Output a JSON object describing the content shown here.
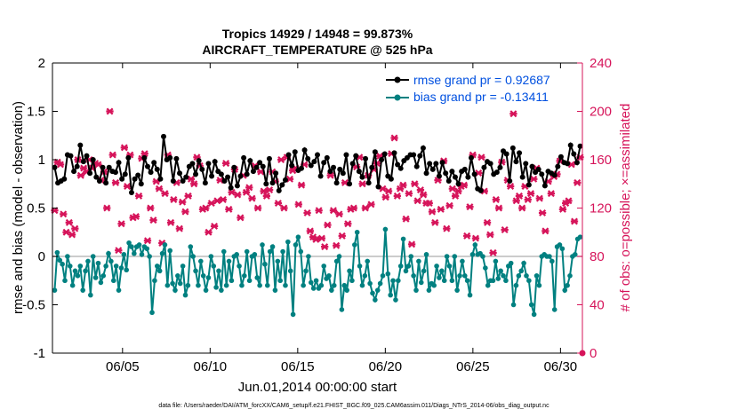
{
  "chart_data": {
    "type": "line",
    "title_line1": "Tropics 14929 / 14948 = 99.873%",
    "title_line2": "AIRCRAFT_TEMPERATURE @ 525 hPa",
    "xlabel": "Jun.01,2014 00:00:00 start",
    "ylabel_left": "rmse and bias (model - observation)",
    "ylabel_right": "# of obs: o=possible; ×=assimilated",
    "footer": "data file: /Users/raeder/DAI/ATM_forcXX/CAM6_setup/f.e21.FHIST_BGC.f09_025.CAM6assim.011/Diags_NTrS_2014-06/obs_diag_output.nc",
    "xlim": [
      1,
      31.25
    ],
    "ylim_left": [
      -1,
      2
    ],
    "ylim_right": [
      0,
      240
    ],
    "x_ticks": [
      5,
      10,
      15,
      20,
      25,
      30
    ],
    "x_tick_labels": [
      "06/05",
      "06/10",
      "06/15",
      "06/20",
      "06/25",
      "06/30"
    ],
    "y_left_ticks": [
      -1,
      -0.5,
      0,
      0.5,
      1,
      1.5,
      2
    ],
    "y_left_tick_labels": [
      "-1",
      "-0.5",
      "0",
      "0.5",
      "1",
      "1.5",
      "2"
    ],
    "y_right_ticks": [
      0,
      40,
      80,
      120,
      160,
      200,
      240
    ],
    "y_right_tick_labels": [
      "0",
      "40",
      "80",
      "120",
      "160",
      "200",
      "240"
    ],
    "legend": {
      "placement": "top-right",
      "entries": [
        "rmse grand pr = 0.92687",
        "bias grand pr = -0.13411"
      ]
    },
    "colors": {
      "rmse": "#000000",
      "bias": "#008080",
      "obs": "#d6145a",
      "zero_line": "#bbbbbb",
      "legend_text": "#0050e0"
    },
    "x_start": 1.125,
    "x_step": 0.25,
    "series": [
      {
        "name": "rmse",
        "values": [
          0.92,
          0.76,
          0.78,
          0.8,
          1.05,
          1.04,
          0.88,
          0.93,
          1.15,
          0.98,
          1.04,
          0.86,
          1.0,
          0.82,
          0.78,
          0.92,
          0.76,
          0.92,
          0.88,
          0.87,
          0.97,
          0.8,
          0.85,
          1.02,
          0.66,
          0.8,
          0.84,
          0.75,
          1.02,
          0.93,
          0.87,
          0.97,
          0.9,
          0.8,
          1.24,
          1.0,
          1.02,
          0.78,
          1.01,
          0.86,
          0.78,
          0.82,
          0.93,
          0.96,
          0.85,
          0.99,
          0.9,
          0.76,
          0.96,
          0.83,
          0.98,
          0.88,
          0.85,
          0.78,
          0.82,
          0.71,
          0.92,
          0.73,
          0.83,
          1.02,
          0.85,
          0.99,
          0.88,
          0.92,
          0.97,
          0.93,
          0.75,
          1.01,
          0.76,
          0.86,
          0.68,
          0.74,
          0.79,
          1.05,
          0.94,
          1.08,
          0.89,
          0.91,
          1.1,
          1.01,
          0.94,
          0.98,
          1.05,
          0.83,
          0.97,
          1.02,
          0.88,
          0.92,
          0.76,
          0.9,
          0.86,
          1.05,
          0.75,
          0.96,
          1.04,
          0.88,
          0.82,
          1.01,
          0.76,
          0.92,
          1.08,
          0.72,
          1.0,
          1.06,
          0.83,
          0.8,
          1.07,
          0.95,
          0.91,
          0.99,
          1.02,
          1.05,
          1.05,
          0.93,
          1.04,
          1.12,
          0.86,
          0.96,
          0.9,
          0.96,
          0.83,
          0.97,
          0.86,
          0.78,
          0.88,
          0.82,
          0.75,
          0.88,
          0.9,
          0.82,
          1.02,
          0.85,
          0.7,
          0.68,
          0.92,
          0.98,
          0.96,
          0.85,
          0.87,
          0.92,
          1.09,
          1.06,
          0.78,
          1.12,
          0.98,
          1.07,
          0.82,
          0.96,
          0.74,
          0.93,
          0.87,
          0.9,
          0.85,
          0.73,
          0.88,
          0.86,
          0.84,
          0.93,
          1.03,
          0.97,
          0.96,
          1.15,
          1.06,
          0.97,
          1.14
        ]
      },
      {
        "name": "bias",
        "values": [
          -0.35,
          0.04,
          -0.04,
          -0.08,
          -0.25,
          0.0,
          -0.1,
          -0.3,
          -0.15,
          -0.2,
          -0.1,
          -0.35,
          -0.15,
          -0.05,
          -0.4,
          0.0,
          -0.22,
          -0.07,
          -0.27,
          -0.2,
          -0.1,
          0.03,
          -0.05,
          -0.25,
          -0.1,
          -0.35,
          -0.12,
          0.02,
          -0.14,
          0.14,
          0.1,
          0.03,
          0.1,
          0.12,
          0.02,
          0.1,
          0.08,
          0.0,
          -0.58,
          -0.25,
          -0.1,
          -0.15,
          0.03,
          0.12,
          -0.3,
          0.06,
          -0.28,
          -0.35,
          -0.2,
          -0.28,
          -0.1,
          -0.4,
          -0.3,
          0.1,
          0.0,
          -0.15,
          -0.3,
          -0.05,
          -0.2,
          -0.35,
          -0.22,
          0.0,
          -0.1,
          -0.32,
          -0.15,
          -0.35,
          0.05,
          -0.3,
          -0.05,
          -0.25,
          0.0,
          0.02,
          -0.1,
          -0.3,
          -0.2,
          0.05,
          -0.25,
          0.0,
          0.02,
          -0.22,
          -0.3,
          0.12,
          -0.08,
          -0.3,
          0.05,
          0.1,
          -0.35,
          -0.05,
          -0.25,
          0.05,
          -0.3,
          0.15,
          -0.15,
          -0.6,
          0.12,
          0.2,
          0.05,
          -0.3,
          -0.15,
          0.0,
          -0.27,
          -0.33,
          -0.25,
          -0.33,
          -0.3,
          -0.1,
          -0.23,
          -0.2,
          -0.35,
          -0.3,
          -0.05,
          0.0,
          -0.55,
          -0.3,
          -0.35,
          -0.15,
          -0.25,
          0.12,
          0.25,
          -0.1,
          -0.3,
          -0.2,
          -0.05,
          -0.28,
          -0.38,
          -0.45,
          -0.35,
          -0.28,
          -0.2,
          0.28,
          -0.18,
          -0.4,
          -0.25,
          -0.45,
          -0.25,
          -0.1,
          0.18,
          -0.15,
          -0.1,
          0.0,
          -0.2,
          -0.35,
          -0.05,
          -0.27,
          -0.15,
          0.02,
          -0.35,
          -0.28,
          -0.3,
          -0.1,
          -0.22,
          -0.15,
          -0.25,
          0.0,
          -0.1,
          -0.25,
          0.0,
          -0.35,
          -0.2,
          -0.05,
          -0.2,
          -0.25,
          -0.4,
          0.02,
          0.12,
          0.02,
          0.03,
          0.0,
          -0.12,
          -0.3,
          -0.25,
          -0.25,
          -0.05,
          -0.23,
          -0.15,
          -0.2,
          -0.25,
          -0.1,
          -0.07,
          -0.5,
          -0.3,
          -0.2,
          -0.15,
          -0.07,
          -0.2,
          -0.25,
          -0.5,
          -0.6,
          -0.2,
          -0.3,
          0.0,
          0.02,
          0.0,
          0.0,
          -0.05,
          -0.55,
          0.1,
          0.12,
          0.08,
          -0.35,
          -0.3,
          -0.2,
          0.0,
          0.02,
          0.18,
          0.2
        ],
        "x_step_override": 0.125
      },
      {
        "name": "observations assimilated",
        "values": [
          118,
          158,
          156,
          115,
          100,
          108,
          98,
          103,
          160,
          147,
          153,
          150,
          160,
          153,
          157,
          156,
          143,
          150,
          120,
          200,
          164,
          141,
          85,
          107,
          170,
          138,
          164,
          112,
          113,
          130,
          161,
          165,
          93,
          120,
          110,
          142,
          136,
          91,
          132,
          164,
          108,
          127,
          141,
          103,
          125,
          117,
          130,
          144,
          140,
          162,
          155,
          119,
          120,
          100,
          124,
          105,
          126,
          143,
          127,
          157,
          119,
          133,
          152,
          131,
          112,
          147,
          133,
          137,
          128,
          155,
          120,
          150,
          134,
          130,
          135,
          150,
          142,
          124,
          160,
          120,
          162,
          144,
          151,
          153,
          123,
          139,
          156,
          116,
          101,
          96,
          94,
          118,
          95,
          88,
          106,
          147,
          118,
          89,
          115,
          97,
          141,
          107,
          119,
          120,
          154,
          162,
          140,
          120,
          147,
          123,
          152,
          157,
          163,
          136,
          129,
          134,
          165,
          178,
          130,
          136,
          139,
          111,
          132,
          90,
          140,
          126,
          135,
          131,
          124,
          124,
          117,
          108,
          143,
          119,
          159,
          103,
          122,
          136,
          130,
          134,
          138,
          139,
          97,
          121,
          164,
          95,
          149,
          162,
          134,
          108,
          98,
          83,
          127,
          120,
          158,
          102,
          143,
          138,
          198,
          126,
          130,
          120,
          138,
          127,
          132,
          144,
          153,
          128,
          116,
          101,
          142,
          132,
          146,
          148,
          159,
          119,
          124,
          126,
          156,
          109,
          141,
          162
        ]
      }
    ]
  }
}
